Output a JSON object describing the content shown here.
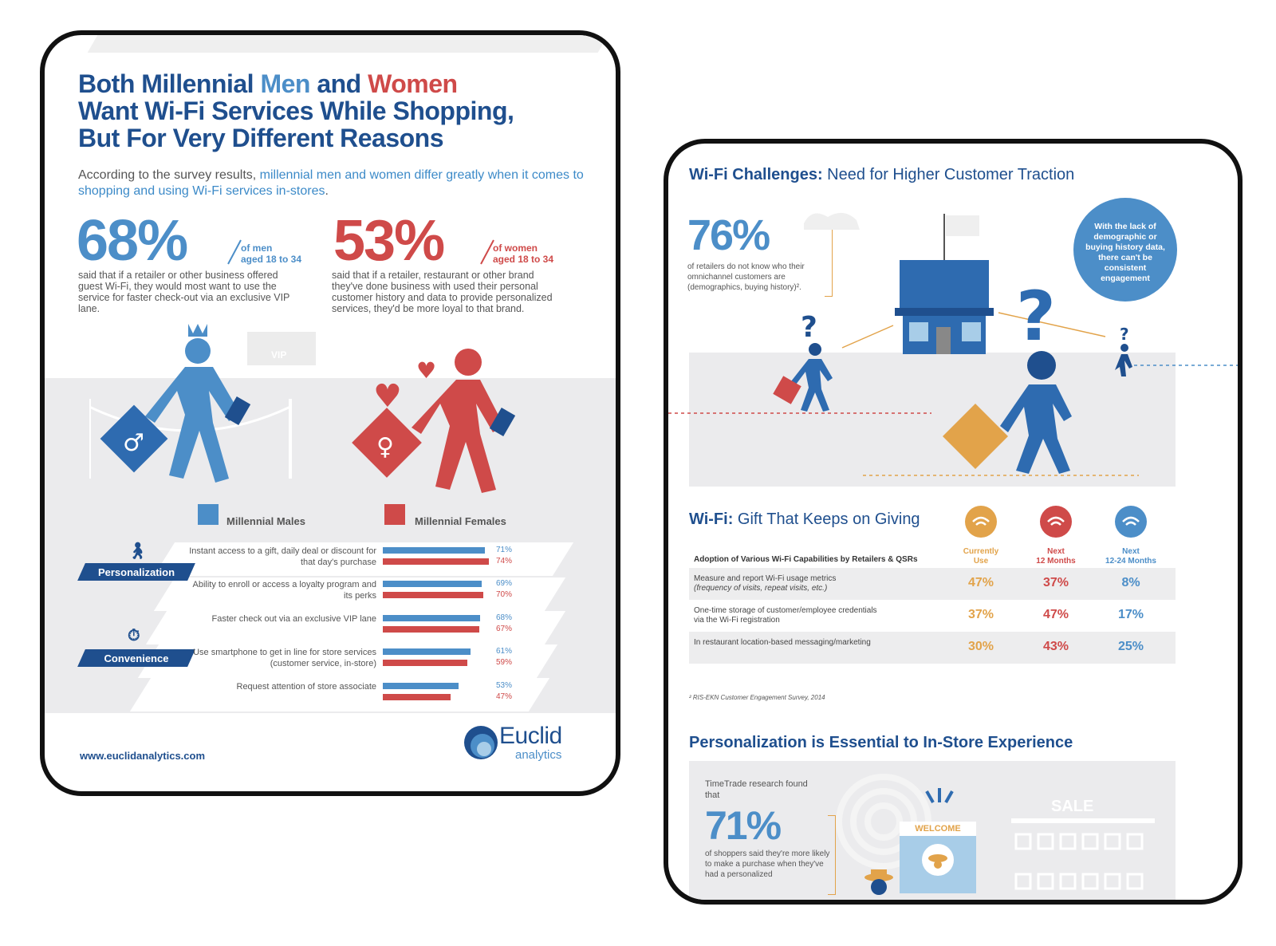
{
  "left_card": {
    "title_parts": [
      "Both Millennial ",
      "Men",
      " and ",
      "Women",
      "Want Wi-Fi Services While Shopping,",
      "But For Very Different Reasons"
    ],
    "intro_plain": "According to the survey results, ",
    "intro_highlight": "millennial men and women differ greatly when it comes to shopping and using Wi-Fi services in-stores",
    "intro_end": ".",
    "men_stat": {
      "percent": "68%",
      "demo_line1": "of men",
      "demo_line2": "aged 18 to 34",
      "description": "said that if a retailer or other business offered guest Wi-Fi, they would most want to use the service for faster check-out via an exclusive VIP lane."
    },
    "women_stat": {
      "percent": "53%",
      "demo_line1": "of women",
      "demo_line2": "aged 18 to 34",
      "description": "said that if a retailer, restaurant or other brand they've done business with used their personal customer history and data to provide personalized services, they'd be more loyal to that brand."
    },
    "vip_label": "VIP",
    "legend": {
      "males": "Millennial Males",
      "females": "Millennial Females"
    },
    "website": "www.euclidanalytics.com",
    "logo_word": "Euclid",
    "logo_sub": "analytics"
  },
  "chart_data": {
    "type": "bar",
    "orientation": "horizontal",
    "title": "",
    "groups": [
      "Personalization",
      "Convenience"
    ],
    "categories": [
      "Instant access to a gift, daily deal or discount for that day's purchase",
      "Ability to enroll or access a loyalty program and its perks",
      "Faster check out via an exclusive VIP lane",
      "Use smartphone to get in line for store services (customer service, in-store)",
      "Request attention of store associate"
    ],
    "category_groups": [
      "Personalization",
      "Personalization",
      "Convenience",
      "Convenience",
      "Convenience"
    ],
    "series": [
      {
        "name": "Millennial Males",
        "color": "#4c8ec8",
        "values": [
          71,
          69,
          68,
          61,
          53
        ]
      },
      {
        "name": "Millennial Females",
        "color": "#cf4a49",
        "values": [
          74,
          70,
          67,
          59,
          47
        ]
      }
    ],
    "value_suffix": "%",
    "xlim": [
      0,
      100
    ]
  },
  "right_card": {
    "title_bold": "Wi-Fi Challenges:",
    "title_rest": " Need for Higher Customer Traction",
    "stat_percent": "76%",
    "stat_desc": "of retailers do not know who their omnichannel customers are (demographics, buying history)².",
    "circle_note": "With the lack of demographic or buying history data, there can't be consistent engagement",
    "table_title_bold": "Wi-Fi:",
    "table_title_rest": " Gift That Keeps on Giving",
    "table_caption": "Adoption of Various Wi-Fi Capabilities by Retailers & QSRs",
    "columns": [
      {
        "label_line1": "Currently",
        "label_line2": "Use",
        "color": "#e2a34a"
      },
      {
        "label_line1": "Next",
        "label_line2": "12 Months",
        "color": "#cf4a49"
      },
      {
        "label_line1": "Next",
        "label_line2": "12-24 Months",
        "color": "#4c8ec8"
      }
    ],
    "rows": [
      {
        "label_line1": "Measure and report Wi-Fi usage metrics",
        "label_line2": "(frequency of visits, repeat visits, etc.)",
        "values": [
          "47%",
          "37%",
          "8%"
        ]
      },
      {
        "label_line1": "One-time storage of customer/employee credentials",
        "label_line2": "via the Wi-Fi registration",
        "values": [
          "37%",
          "47%",
          "17%"
        ]
      },
      {
        "label_line1": "In restaurant location-based messaging/marketing",
        "label_line2": "",
        "values": [
          "30%",
          "43%",
          "25%"
        ]
      }
    ],
    "footnote": "² RIS-EKN Customer Engagement Survey, 2014",
    "section3_title": "Personalization is Essential to In-Store Experience",
    "tt_found": "TimeTrade research found that",
    "stat2_percent": "71%",
    "stat2_desc": "of shoppers said they're more likely to make a purchase when they've had a personalized",
    "welcome": "WELCOME",
    "sale": "SALE"
  }
}
